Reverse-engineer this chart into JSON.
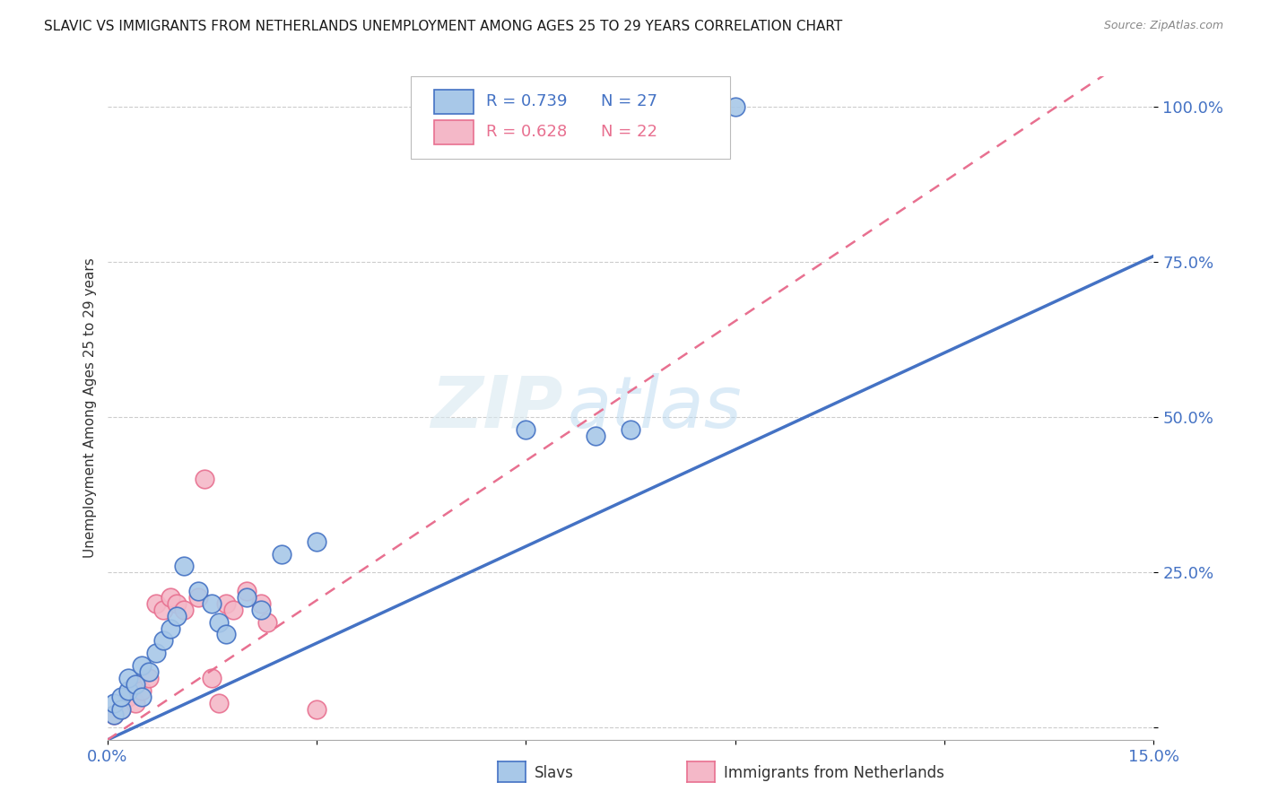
{
  "title": "SLAVIC VS IMMIGRANTS FROM NETHERLANDS UNEMPLOYMENT AMONG AGES 25 TO 29 YEARS CORRELATION CHART",
  "source": "Source: ZipAtlas.com",
  "ylabel": "Unemployment Among Ages 25 to 29 years",
  "xlim": [
    0.0,
    0.15
  ],
  "ylim": [
    -0.02,
    1.05
  ],
  "xticks": [
    0.0,
    0.03,
    0.06,
    0.09,
    0.12,
    0.15
  ],
  "xticklabels": [
    "0.0%",
    "",
    "",
    "",
    "",
    "15.0%"
  ],
  "ytick_positions": [
    0.0,
    0.25,
    0.5,
    0.75,
    1.0
  ],
  "ytick_labels": [
    "",
    "25.0%",
    "50.0%",
    "75.0%",
    "100.0%"
  ],
  "slavs_x": [
    0.001,
    0.001,
    0.002,
    0.002,
    0.003,
    0.003,
    0.004,
    0.005,
    0.005,
    0.006,
    0.007,
    0.008,
    0.009,
    0.01,
    0.011,
    0.013,
    0.015,
    0.016,
    0.017,
    0.02,
    0.022,
    0.025,
    0.03,
    0.06,
    0.07,
    0.075,
    0.09
  ],
  "slavs_y": [
    0.02,
    0.04,
    0.03,
    0.05,
    0.06,
    0.08,
    0.07,
    0.1,
    0.05,
    0.09,
    0.12,
    0.14,
    0.16,
    0.18,
    0.26,
    0.22,
    0.2,
    0.17,
    0.15,
    0.21,
    0.19,
    0.28,
    0.3,
    0.48,
    0.47,
    0.48,
    1.0
  ],
  "netherlands_x": [
    0.001,
    0.002,
    0.003,
    0.004,
    0.004,
    0.005,
    0.006,
    0.007,
    0.008,
    0.009,
    0.01,
    0.011,
    0.013,
    0.014,
    0.015,
    0.016,
    0.017,
    0.018,
    0.02,
    0.022,
    0.023,
    0.03
  ],
  "netherlands_y": [
    0.02,
    0.03,
    0.05,
    0.04,
    0.07,
    0.06,
    0.08,
    0.2,
    0.19,
    0.21,
    0.2,
    0.19,
    0.21,
    0.4,
    0.08,
    0.04,
    0.2,
    0.19,
    0.22,
    0.2,
    0.17,
    0.03
  ],
  "slavs_color": "#a8c8e8",
  "netherlands_color": "#f4b8c8",
  "slavs_line_color": "#4472c4",
  "netherlands_line_color": "#e87090",
  "legend_slavs_R": "R = 0.739",
  "legend_slavs_N": "N = 27",
  "legend_netherlands_R": "R = 0.628",
  "legend_netherlands_N": "N = 22",
  "watermark_zip": "ZIP",
  "watermark_atlas": "atlas",
  "background_color": "#ffffff",
  "grid_color": "#cccccc",
  "slavs_reg_slope": 5.2,
  "slavs_reg_intercept": -0.02,
  "neth_reg_slope": 7.5,
  "neth_reg_intercept": -0.02
}
